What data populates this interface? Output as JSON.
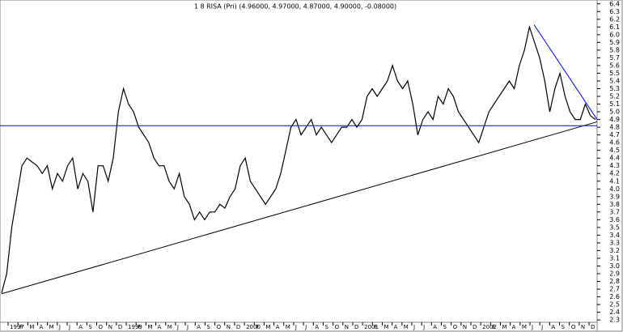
{
  "chart_data": {
    "type": "line",
    "title": "1 8 RISA (Pri) (4.96000, 4.97000, 4.87000, 4.90000, -0.08000)",
    "x_labels": [
      "1997",
      "F",
      "M",
      "A",
      "M",
      "J",
      "J",
      "A",
      "S",
      "O",
      "N",
      "D",
      "1999",
      "F",
      "M",
      "A",
      "M",
      "J",
      "J",
      "A",
      "S",
      "O",
      "N",
      "D",
      "2000",
      "F",
      "M",
      "A",
      "M",
      "J",
      "J",
      "A",
      "S",
      "O",
      "N",
      "D",
      "2001",
      "F",
      "M",
      "A",
      "M",
      "J",
      "J",
      "A",
      "S",
      "O",
      "N",
      "D",
      "2002",
      "F",
      "M",
      "A",
      "M",
      "J",
      "J",
      "A",
      "S",
      "O",
      "N",
      "D"
    ],
    "series": [
      {
        "color": "#000000",
        "values": [
          2.65,
          2.9,
          3.5,
          3.9,
          4.3,
          4.4,
          4.35,
          4.3,
          4.2,
          4.3,
          4.0,
          4.2,
          4.1,
          4.3,
          4.4,
          4.0,
          4.2,
          4.1,
          3.7,
          4.3,
          4.3,
          4.1,
          4.4,
          5.0,
          5.3,
          5.1,
          5.0,
          4.8,
          4.7,
          4.6,
          4.4,
          4.3,
          4.3,
          4.1,
          4.0,
          4.2,
          3.9,
          3.8,
          3.6,
          3.7,
          3.6,
          3.7,
          3.7,
          3.8,
          3.75,
          3.9,
          4.0,
          4.3,
          4.4,
          4.1,
          4.0,
          3.9,
          3.8,
          3.9,
          4.0,
          4.2,
          4.5,
          4.8,
          4.9,
          4.7,
          4.8,
          4.9,
          4.7,
          4.8,
          4.7,
          4.6,
          4.7,
          4.8,
          4.8,
          4.9,
          4.8,
          4.9,
          5.2,
          5.3,
          5.2,
          5.3,
          5.4,
          5.6,
          5.4,
          5.3,
          5.4,
          5.1,
          4.7,
          4.9,
          5.0,
          4.9,
          5.2,
          5.1,
          5.3,
          5.2,
          5.0,
          4.9,
          4.8,
          4.7,
          4.6,
          4.8,
          5.0,
          5.1,
          5.2,
          5.3,
          5.4,
          5.3,
          5.6,
          5.8,
          6.1,
          5.9,
          5.7,
          5.4,
          5.0,
          5.3,
          5.5,
          5.2,
          5.0,
          4.9,
          4.9,
          5.1,
          4.95,
          4.9
        ]
      }
    ],
    "trend_lines": [
      {
        "color": "#000000",
        "from": 2.64,
        "to": 4.87
      },
      {
        "color": "#0000ff",
        "from": 4.82,
        "to": 4.82
      },
      {
        "color": "#0000ff",
        "from": 6.13,
        "to": 4.9
      }
    ],
    "ylim": [
      2.27,
      6.45
    ],
    "yticks": [
      6.4,
      6.3,
      6.2,
      6.1,
      {
        "value": 6,
        "label": "6.0"
      },
      5.9,
      5.8,
      5.7,
      5.6,
      5.5,
      5.4,
      5.3,
      5.2,
      5.1,
      {
        "value": 5,
        "label": "5.0"
      },
      4.9,
      4.8,
      4.7,
      4.6,
      4.5,
      4.4,
      4.3,
      4.2,
      4.1,
      {
        "value": 4,
        "label": "4.0"
      },
      3.9,
      3.8,
      3.7,
      3.6,
      3.5,
      3.4,
      3.3,
      3.2,
      3.1,
      {
        "value": 3,
        "label": "3.0"
      },
      2.9,
      2.8,
      2.7,
      2.6,
      2.5,
      2.4,
      2.3
    ]
  }
}
